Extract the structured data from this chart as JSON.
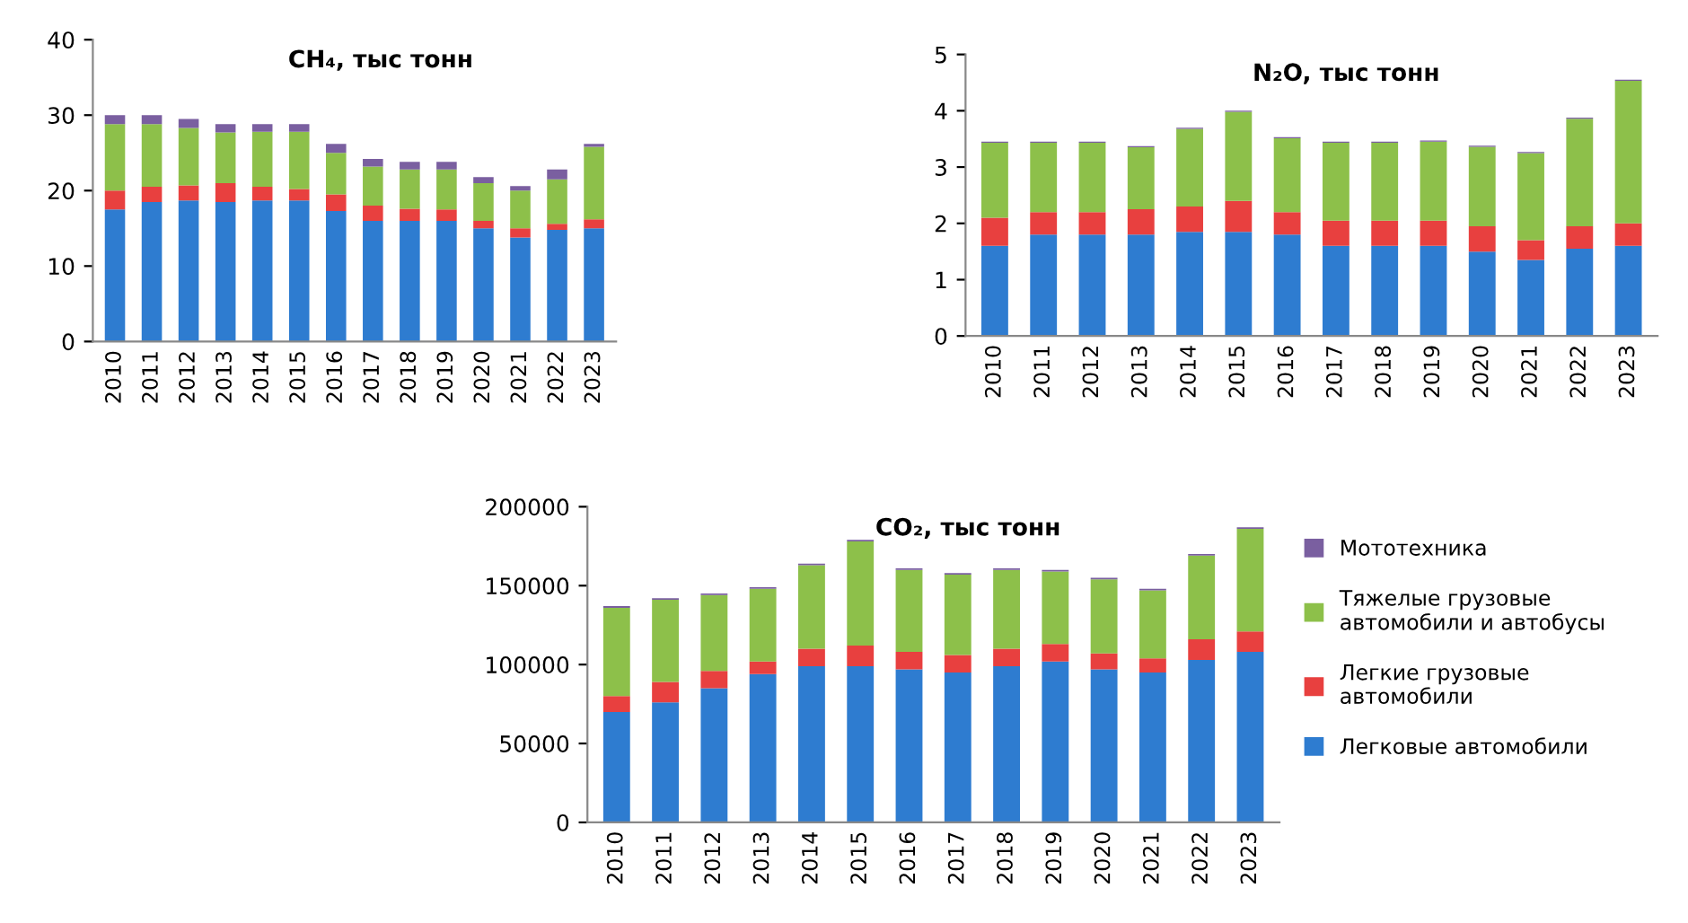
{
  "chart_data": [
    {
      "type": "bar",
      "stacked": true,
      "title": "CH₄, тыс тонн",
      "categories": [
        "2010",
        "2011",
        "2012",
        "2013",
        "2014",
        "2015",
        "2016",
        "2017",
        "2018",
        "2019",
        "2020",
        "2021",
        "2022",
        "2023"
      ],
      "ylim": [
        0,
        40
      ],
      "yticks": [
        0,
        10,
        20,
        30,
        40
      ],
      "series": [
        {
          "color": "#2e7cd0",
          "values": [
            17.5,
            18.5,
            18.7,
            18.5,
            18.7,
            18.7,
            17.3,
            16.0,
            16.0,
            16.0,
            15.0,
            13.8,
            14.8,
            15.0
          ]
        },
        {
          "color": "#e8403f",
          "values": [
            2.5,
            2.0,
            2.0,
            2.5,
            1.8,
            1.5,
            2.2,
            2.0,
            1.6,
            1.5,
            1.0,
            1.2,
            0.8,
            1.2
          ]
        },
        {
          "color": "#8dc04a",
          "values": [
            8.8,
            8.3,
            7.6,
            6.7,
            7.3,
            7.6,
            5.5,
            5.2,
            5.2,
            5.3,
            5.0,
            5.0,
            5.9,
            9.6
          ]
        },
        {
          "color": "#7a5fa0",
          "values": [
            1.2,
            1.2,
            1.2,
            1.1,
            1.0,
            1.0,
            1.2,
            1.0,
            1.0,
            1.0,
            0.8,
            0.6,
            1.3,
            0.4
          ]
        }
      ]
    },
    {
      "type": "bar",
      "stacked": true,
      "title": "N₂O, тыс тонн",
      "categories": [
        "2010",
        "2011",
        "2012",
        "2013",
        "2014",
        "2015",
        "2016",
        "2017",
        "2018",
        "2019",
        "2020",
        "2021",
        "2022",
        "2023"
      ],
      "ylim": [
        0,
        5
      ],
      "yticks": [
        0,
        1,
        2,
        3,
        4,
        5
      ],
      "series": [
        {
          "color": "#2e7cd0",
          "values": [
            1.6,
            1.8,
            1.8,
            1.8,
            1.85,
            1.85,
            1.8,
            1.6,
            1.6,
            1.6,
            1.5,
            1.35,
            1.55,
            1.6
          ]
        },
        {
          "color": "#e8403f",
          "values": [
            0.5,
            0.4,
            0.4,
            0.45,
            0.45,
            0.55,
            0.4,
            0.45,
            0.45,
            0.45,
            0.45,
            0.35,
            0.4,
            0.4
          ]
        },
        {
          "color": "#8dc04a",
          "values": [
            1.33,
            1.23,
            1.23,
            1.1,
            1.38,
            1.58,
            1.31,
            1.38,
            1.38,
            1.4,
            1.41,
            1.55,
            1.91,
            2.53
          ]
        },
        {
          "color": "#7a5fa0",
          "values": [
            0.02,
            0.02,
            0.02,
            0.02,
            0.02,
            0.02,
            0.02,
            0.02,
            0.02,
            0.02,
            0.02,
            0.02,
            0.02,
            0.02
          ]
        }
      ]
    },
    {
      "type": "bar",
      "stacked": true,
      "title": "CO₂, тыс тонн",
      "legend": "right",
      "categories": [
        "2010",
        "2011",
        "2012",
        "2013",
        "2014",
        "2015",
        "2016",
        "2017",
        "2018",
        "2019",
        "2020",
        "2021",
        "2022",
        "2023"
      ],
      "ylim": [
        0,
        200000
      ],
      "yticks": [
        0,
        50000,
        100000,
        150000,
        200000
      ],
      "series": [
        {
          "name": "Легковые автомобили",
          "color": "#2e7cd0",
          "values": [
            70000,
            76000,
            85000,
            94000,
            99000,
            99000,
            97000,
            95000,
            99000,
            102000,
            97000,
            95000,
            103000,
            108000
          ]
        },
        {
          "name": "Легкие грузовые\nавтомобили",
          "color": "#e8403f",
          "values": [
            10000,
            13000,
            11000,
            8000,
            11000,
            13000,
            11000,
            11000,
            11000,
            11000,
            10000,
            9000,
            13000,
            13000
          ]
        },
        {
          "name": "Тяжелые грузовые\nавтомобили и автобусы",
          "color": "#8dc04a",
          "values": [
            56000,
            52000,
            48000,
            46000,
            53000,
            66000,
            52000,
            51000,
            50000,
            46000,
            47000,
            43000,
            53000,
            65000
          ]
        },
        {
          "name": "Мототехника",
          "color": "#7a5fa0",
          "values": [
            1000,
            1000,
            1000,
            1000,
            1000,
            1000,
            1000,
            1000,
            1000,
            1000,
            1000,
            1000,
            1000,
            1000
          ]
        }
      ]
    }
  ]
}
